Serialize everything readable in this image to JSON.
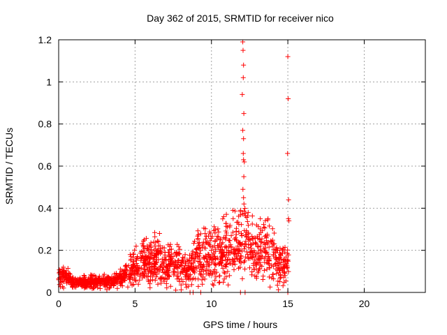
{
  "chart_data": {
    "type": "scatter",
    "title": "Day 362 of 2015, SRMTID for receiver nico",
    "xlabel": "GPS time / hours",
    "ylabel": "SRMTID / TECUs",
    "xlim": [
      0,
      24
    ],
    "ylim": [
      0,
      1.2
    ],
    "grid": true,
    "marker": "+",
    "series_color": "#ff0000",
    "x_ticks": [
      0,
      5,
      10,
      15,
      20
    ],
    "x_tick_labels": [
      "0",
      "5",
      "10",
      "15",
      "20"
    ],
    "y_ticks": [
      0,
      0.2,
      0.4,
      0.6,
      0.8,
      1.0,
      1.2
    ],
    "y_tick_labels": [
      "0",
      "0.2",
      "0.4",
      "0.6",
      "0.8",
      "1",
      "1.2"
    ],
    "profile": {
      "description_points": "approximate central trend of the dense point cloud in data units [hour, TECU]",
      "points": [
        [
          0.0,
          0.07
        ],
        [
          0.5,
          0.08
        ],
        [
          1.0,
          0.04
        ],
        [
          2.0,
          0.05
        ],
        [
          3.0,
          0.05
        ],
        [
          3.5,
          0.05
        ],
        [
          4.0,
          0.07
        ],
        [
          5.0,
          0.11
        ],
        [
          5.5,
          0.15
        ],
        [
          6.0,
          0.14
        ],
        [
          6.5,
          0.15
        ],
        [
          7.0,
          0.12
        ],
        [
          7.5,
          0.13
        ],
        [
          8.0,
          0.12
        ],
        [
          8.5,
          0.11
        ],
        [
          9.0,
          0.16
        ],
        [
          9.5,
          0.18
        ],
        [
          10.0,
          0.16
        ],
        [
          10.5,
          0.19
        ],
        [
          11.0,
          0.2
        ],
        [
          11.5,
          0.22
        ],
        [
          12.0,
          0.25
        ],
        [
          12.5,
          0.21
        ],
        [
          13.0,
          0.19
        ],
        [
          13.5,
          0.2
        ],
        [
          14.0,
          0.17
        ],
        [
          14.5,
          0.14
        ],
        [
          15.0,
          0.13
        ]
      ],
      "t_min": 0.0,
      "t_max": 15.05,
      "n_points": 1500,
      "seed": 20151228
    },
    "outliers": [
      [
        12.05,
        1.19
      ],
      [
        12.07,
        1.15
      ],
      [
        12.1,
        1.08
      ],
      [
        12.08,
        1.02
      ],
      [
        12.02,
        0.94
      ],
      [
        12.12,
        0.85
      ],
      [
        12.05,
        0.77
      ],
      [
        12.1,
        0.73
      ],
      [
        12.08,
        0.66
      ],
      [
        12.1,
        0.63
      ],
      [
        12.15,
        0.62
      ],
      [
        12.12,
        0.55
      ],
      [
        12.06,
        0.49
      ],
      [
        12.1,
        0.45
      ],
      [
        12.13,
        0.42
      ],
      [
        15.0,
        1.12
      ],
      [
        15.02,
        0.92
      ],
      [
        14.98,
        0.66
      ],
      [
        15.05,
        0.44
      ],
      [
        15.04,
        0.35
      ],
      [
        15.07,
        0.34
      ],
      [
        11.4,
        0.39
      ],
      [
        11.9,
        0.39
      ],
      [
        12.4,
        0.38
      ],
      [
        13.7,
        0.35
      ],
      [
        13.2,
        0.35
      ],
      [
        10.8,
        0.36
      ],
      [
        6.6,
        0.28
      ],
      [
        5.6,
        0.25
      ],
      [
        8.6,
        0.0
      ],
      [
        8.8,
        0.0
      ],
      [
        9.3,
        0.0
      ],
      [
        11.9,
        0.0
      ],
      [
        12.2,
        0.0
      ],
      [
        15.0,
        0.0
      ]
    ]
  }
}
